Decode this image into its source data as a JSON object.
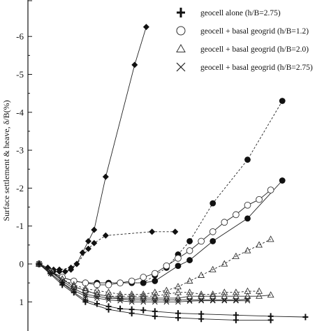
{
  "chart_data": {
    "type": "scatter",
    "ylabel": "Surface settlement & heave, δ/B(%)",
    "ylim": [
      -6.8,
      1.5
    ],
    "y_ticks": [
      {
        "value": -6,
        "label": "-6"
      },
      {
        "value": -5,
        "label": "-5"
      },
      {
        "value": -4,
        "label": "-4"
      },
      {
        "value": -3,
        "label": "-3"
      },
      {
        "value": -2,
        "label": "-2"
      },
      {
        "value": -1,
        "label": "-1"
      },
      {
        "value": 0,
        "label": "0"
      },
      {
        "value": 1,
        "label": "1"
      }
    ],
    "legend": {
      "position": "top-right",
      "entries": [
        {
          "marker": "cross",
          "label": "geocell alone (h/B=2.75)"
        },
        {
          "marker": "circle-open",
          "label": "geocell + basal geogrid (h/B=1.2)"
        },
        {
          "marker": "triangle-open",
          "label": "geocell + basal geogrid (h/B=2.0)"
        },
        {
          "marker": "x",
          "label": "geocell + basal geogrid (h/B=2.75)"
        }
      ]
    },
    "series": [
      {
        "marker": "diamond-filled",
        "line": "solid",
        "points": [
          [
            0,
            0
          ],
          [
            1.5,
            0.1
          ],
          [
            2.5,
            0.2
          ],
          [
            3.5,
            0.2
          ],
          [
            4.5,
            0.2
          ],
          [
            5.5,
            0.15
          ],
          [
            6.5,
            0.0
          ],
          [
            7.5,
            -0.3
          ],
          [
            8.5,
            -0.6
          ],
          [
            9.5,
            -0.9
          ],
          [
            11.5,
            -2.3
          ],
          [
            16.5,
            -5.25
          ],
          [
            18.5,
            -6.25
          ]
        ]
      },
      {
        "marker": "diamond-filled",
        "line": "dashed",
        "points": [
          [
            0,
            0
          ],
          [
            1.5,
            0.1
          ],
          [
            2.5,
            0.15
          ],
          [
            3.5,
            0.15
          ],
          [
            5.5,
            0.1
          ],
          [
            6.5,
            0.0
          ],
          [
            8.5,
            -0.4
          ],
          [
            9.5,
            -0.55
          ],
          [
            11.5,
            -0.75
          ],
          [
            19.5,
            -0.85
          ],
          [
            23.5,
            -0.85
          ]
        ]
      },
      {
        "marker": "circle-filled",
        "line": "dashed",
        "points": [
          [
            0,
            0
          ],
          [
            2,
            0.2
          ],
          [
            4,
            0.35
          ],
          [
            6,
            0.45
          ],
          [
            8,
            0.5
          ],
          [
            10,
            0.5
          ],
          [
            12,
            0.5
          ],
          [
            14,
            0.5
          ],
          [
            16,
            0.5
          ],
          [
            18,
            0.5
          ],
          [
            20,
            0.3
          ],
          [
            22,
            0.1
          ],
          [
            24,
            -0.25
          ],
          [
            26,
            -0.6
          ],
          [
            30,
            -1.6
          ],
          [
            36,
            -2.75
          ],
          [
            42,
            -4.3
          ]
        ]
      },
      {
        "marker": "circle-filled",
        "line": "solid",
        "points": [
          [
            0,
            0
          ],
          [
            2,
            0.2
          ],
          [
            4,
            0.35
          ],
          [
            6,
            0.45
          ],
          [
            8,
            0.5
          ],
          [
            10,
            0.5
          ],
          [
            12,
            0.5
          ],
          [
            14,
            0.5
          ],
          [
            16,
            0.5
          ],
          [
            18,
            0.5
          ],
          [
            20,
            0.45
          ],
          [
            24,
            0.05
          ],
          [
            26,
            -0.1
          ],
          [
            30,
            -0.6
          ],
          [
            36,
            -1.2
          ],
          [
            42,
            -2.2
          ]
        ]
      },
      {
        "marker": "circle-open",
        "line": "solid",
        "points": [
          [
            0,
            0
          ],
          [
            2,
            0.2
          ],
          [
            4,
            0.35
          ],
          [
            6,
            0.45
          ],
          [
            8,
            0.5
          ],
          [
            10,
            0.55
          ],
          [
            12,
            0.55
          ],
          [
            14,
            0.5
          ],
          [
            16,
            0.45
          ],
          [
            18,
            0.35
          ],
          [
            20,
            0.25
          ],
          [
            22,
            0.05
          ],
          [
            24,
            -0.15
          ],
          [
            26,
            -0.35
          ],
          [
            28,
            -0.6
          ],
          [
            30,
            -0.85
          ],
          [
            32,
            -1.1
          ],
          [
            34,
            -1.3
          ],
          [
            36,
            -1.55
          ],
          [
            38,
            -1.7
          ],
          [
            40,
            -1.95
          ]
        ]
      },
      {
        "marker": "triangle-open",
        "line": "dashed",
        "points": [
          [
            0,
            0
          ],
          [
            2,
            0.2
          ],
          [
            4,
            0.4
          ],
          [
            6,
            0.55
          ],
          [
            8,
            0.65
          ],
          [
            10,
            0.7
          ],
          [
            12,
            0.75
          ],
          [
            14,
            0.8
          ],
          [
            16,
            0.8
          ],
          [
            18,
            0.8
          ],
          [
            20,
            0.75
          ],
          [
            22,
            0.7
          ],
          [
            24,
            0.6
          ],
          [
            26,
            0.45
          ],
          [
            28,
            0.3
          ],
          [
            30,
            0.15
          ],
          [
            32,
            0.0
          ],
          [
            34,
            -0.2
          ],
          [
            36,
            -0.35
          ],
          [
            38,
            -0.5
          ],
          [
            40,
            -0.65
          ]
        ]
      },
      {
        "marker": "triangle-open",
        "line": "dashed",
        "points": [
          [
            0,
            0
          ],
          [
            2,
            0.2
          ],
          [
            4,
            0.4
          ],
          [
            6,
            0.6
          ],
          [
            8,
            0.7
          ],
          [
            10,
            0.8
          ],
          [
            12,
            0.85
          ],
          [
            14,
            0.85
          ],
          [
            16,
            0.85
          ],
          [
            18,
            0.85
          ],
          [
            20,
            0.85
          ],
          [
            22,
            0.8
          ],
          [
            24,
            0.75
          ],
          [
            26,
            0.75
          ],
          [
            28,
            0.8
          ],
          [
            30,
            0.8
          ],
          [
            32,
            0.75
          ],
          [
            34,
            0.75
          ],
          [
            36,
            0.72
          ],
          [
            38,
            0.72
          ]
        ]
      },
      {
        "marker": "triangle-open",
        "line": "solid",
        "points": [
          [
            0,
            0
          ],
          [
            2,
            0.2
          ],
          [
            4,
            0.4
          ],
          [
            6,
            0.6
          ],
          [
            8,
            0.7
          ],
          [
            10,
            0.8
          ],
          [
            12,
            0.85
          ],
          [
            14,
            0.9
          ],
          [
            16,
            0.9
          ],
          [
            18,
            0.9
          ],
          [
            20,
            0.9
          ],
          [
            22,
            0.9
          ],
          [
            24,
            0.9
          ],
          [
            26,
            0.85
          ],
          [
            28,
            0.85
          ],
          [
            30,
            0.85
          ],
          [
            32,
            0.85
          ],
          [
            34,
            0.85
          ],
          [
            36,
            0.85
          ],
          [
            38,
            0.85
          ],
          [
            40,
            0.82
          ]
        ]
      },
      {
        "marker": "x",
        "line": "solid",
        "points": [
          [
            0,
            0
          ],
          [
            2,
            0.2
          ],
          [
            4,
            0.45
          ],
          [
            6,
            0.65
          ],
          [
            8,
            0.8
          ],
          [
            10,
            0.85
          ],
          [
            12,
            0.9
          ],
          [
            14,
            0.92
          ],
          [
            16,
            0.95
          ],
          [
            18,
            0.95
          ],
          [
            20,
            0.95
          ],
          [
            22,
            0.95
          ],
          [
            24,
            0.95
          ],
          [
            26,
            0.95
          ],
          [
            28,
            0.95
          ],
          [
            30,
            0.95
          ],
          [
            32,
            0.95
          ],
          [
            34,
            0.95
          ],
          [
            36,
            0.93
          ]
        ]
      },
      {
        "marker": "x",
        "line": "solid",
        "points": [
          [
            0,
            0
          ],
          [
            2,
            0.25
          ],
          [
            4,
            0.5
          ],
          [
            6,
            0.7
          ],
          [
            8,
            0.85
          ],
          [
            10,
            0.9
          ],
          [
            12,
            0.95
          ],
          [
            14,
            0.97
          ],
          [
            16,
            1.0
          ],
          [
            18,
            1.0
          ],
          [
            20,
            1.0
          ],
          [
            22,
            1.0
          ],
          [
            24,
            1.0
          ],
          [
            26,
            0.98
          ],
          [
            28,
            0.97
          ],
          [
            30,
            0.97
          ],
          [
            32,
            0.97
          ],
          [
            34,
            0.97
          ],
          [
            36,
            0.97
          ]
        ]
      },
      {
        "marker": "cross",
        "line": "solid",
        "points": [
          [
            0,
            0
          ],
          [
            2,
            0.25
          ],
          [
            4,
            0.5
          ],
          [
            6,
            0.75
          ],
          [
            8,
            0.95
          ],
          [
            10,
            1.05
          ],
          [
            12,
            1.12
          ],
          [
            14,
            1.18
          ],
          [
            16,
            1.2
          ],
          [
            18,
            1.22
          ],
          [
            20,
            1.25
          ],
          [
            24,
            1.3
          ],
          [
            28,
            1.32
          ],
          [
            34,
            1.35
          ],
          [
            40,
            1.38
          ],
          [
            46,
            1.4
          ]
        ]
      },
      {
        "marker": "cross",
        "line": "solid",
        "points": [
          [
            0,
            0
          ],
          [
            4,
            0.55
          ],
          [
            8,
            1.0
          ],
          [
            12,
            1.2
          ],
          [
            16,
            1.3
          ],
          [
            20,
            1.38
          ],
          [
            24,
            1.42
          ],
          [
            28,
            1.45
          ],
          [
            34,
            1.48
          ],
          [
            40,
            1.48
          ]
        ]
      }
    ]
  }
}
